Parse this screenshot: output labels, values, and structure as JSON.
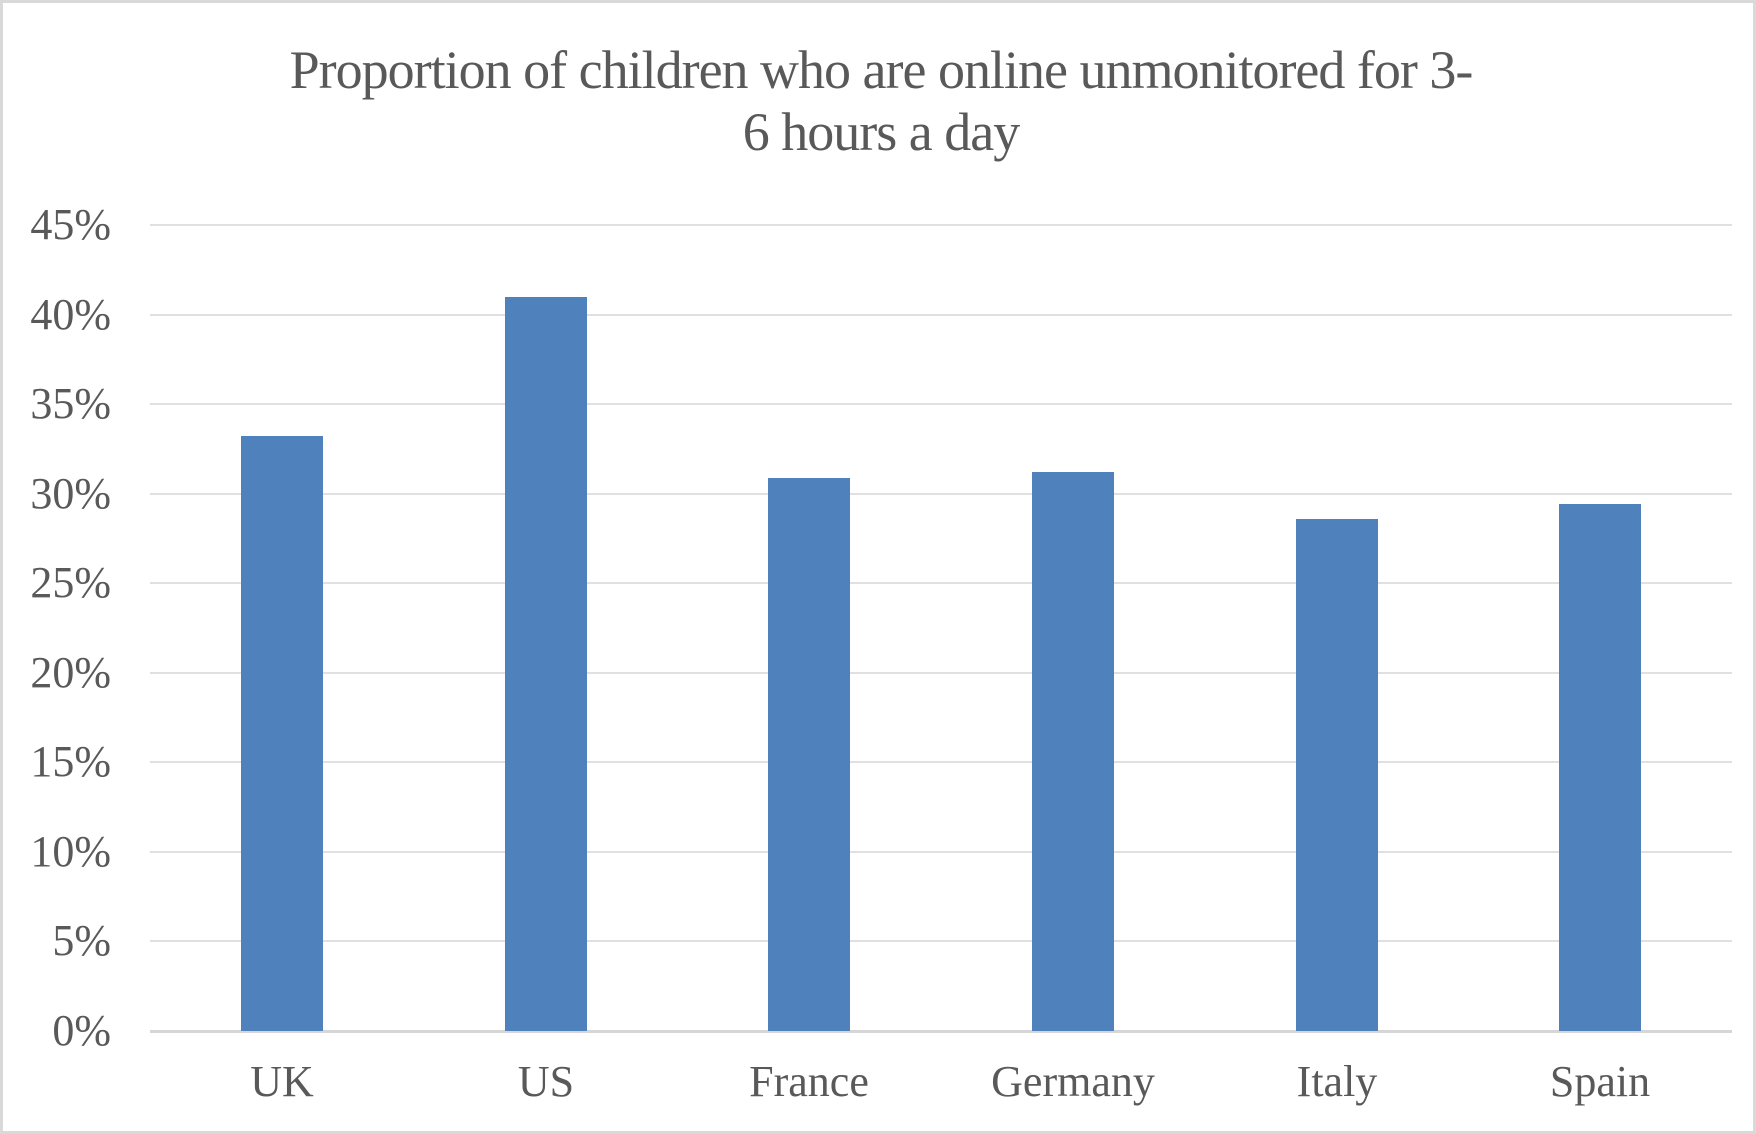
{
  "chart_data": {
    "type": "bar",
    "title": "Proportion of children who are online unmonitored for 3-6 hours a day",
    "title_lines": [
      "Proportion of children who are online unmonitored for 3-",
      "6 hours a day"
    ],
    "categories": [
      "UK",
      "US",
      "France",
      "Germany",
      "Italy",
      "Spain"
    ],
    "values": [
      33.2,
      41,
      30.9,
      31.2,
      28.6,
      29.4
    ],
    "value_unit": "%",
    "xlabel": "",
    "ylabel": "",
    "ylim": [
      0,
      45
    ],
    "ytick_step": 5,
    "ytick_labels": [
      "0%",
      "5%",
      "10%",
      "15%",
      "20%",
      "25%",
      "30%",
      "35%",
      "40%",
      "45%"
    ],
    "grid": "horizontal",
    "legend": "none",
    "colors": {
      "bar": "#4f81bd",
      "gridline": "#e0e0e0",
      "axis_line": "#d6d6d6",
      "text": "#595959",
      "frame_border": "#d9d9d9",
      "background": "#ffffff"
    }
  }
}
